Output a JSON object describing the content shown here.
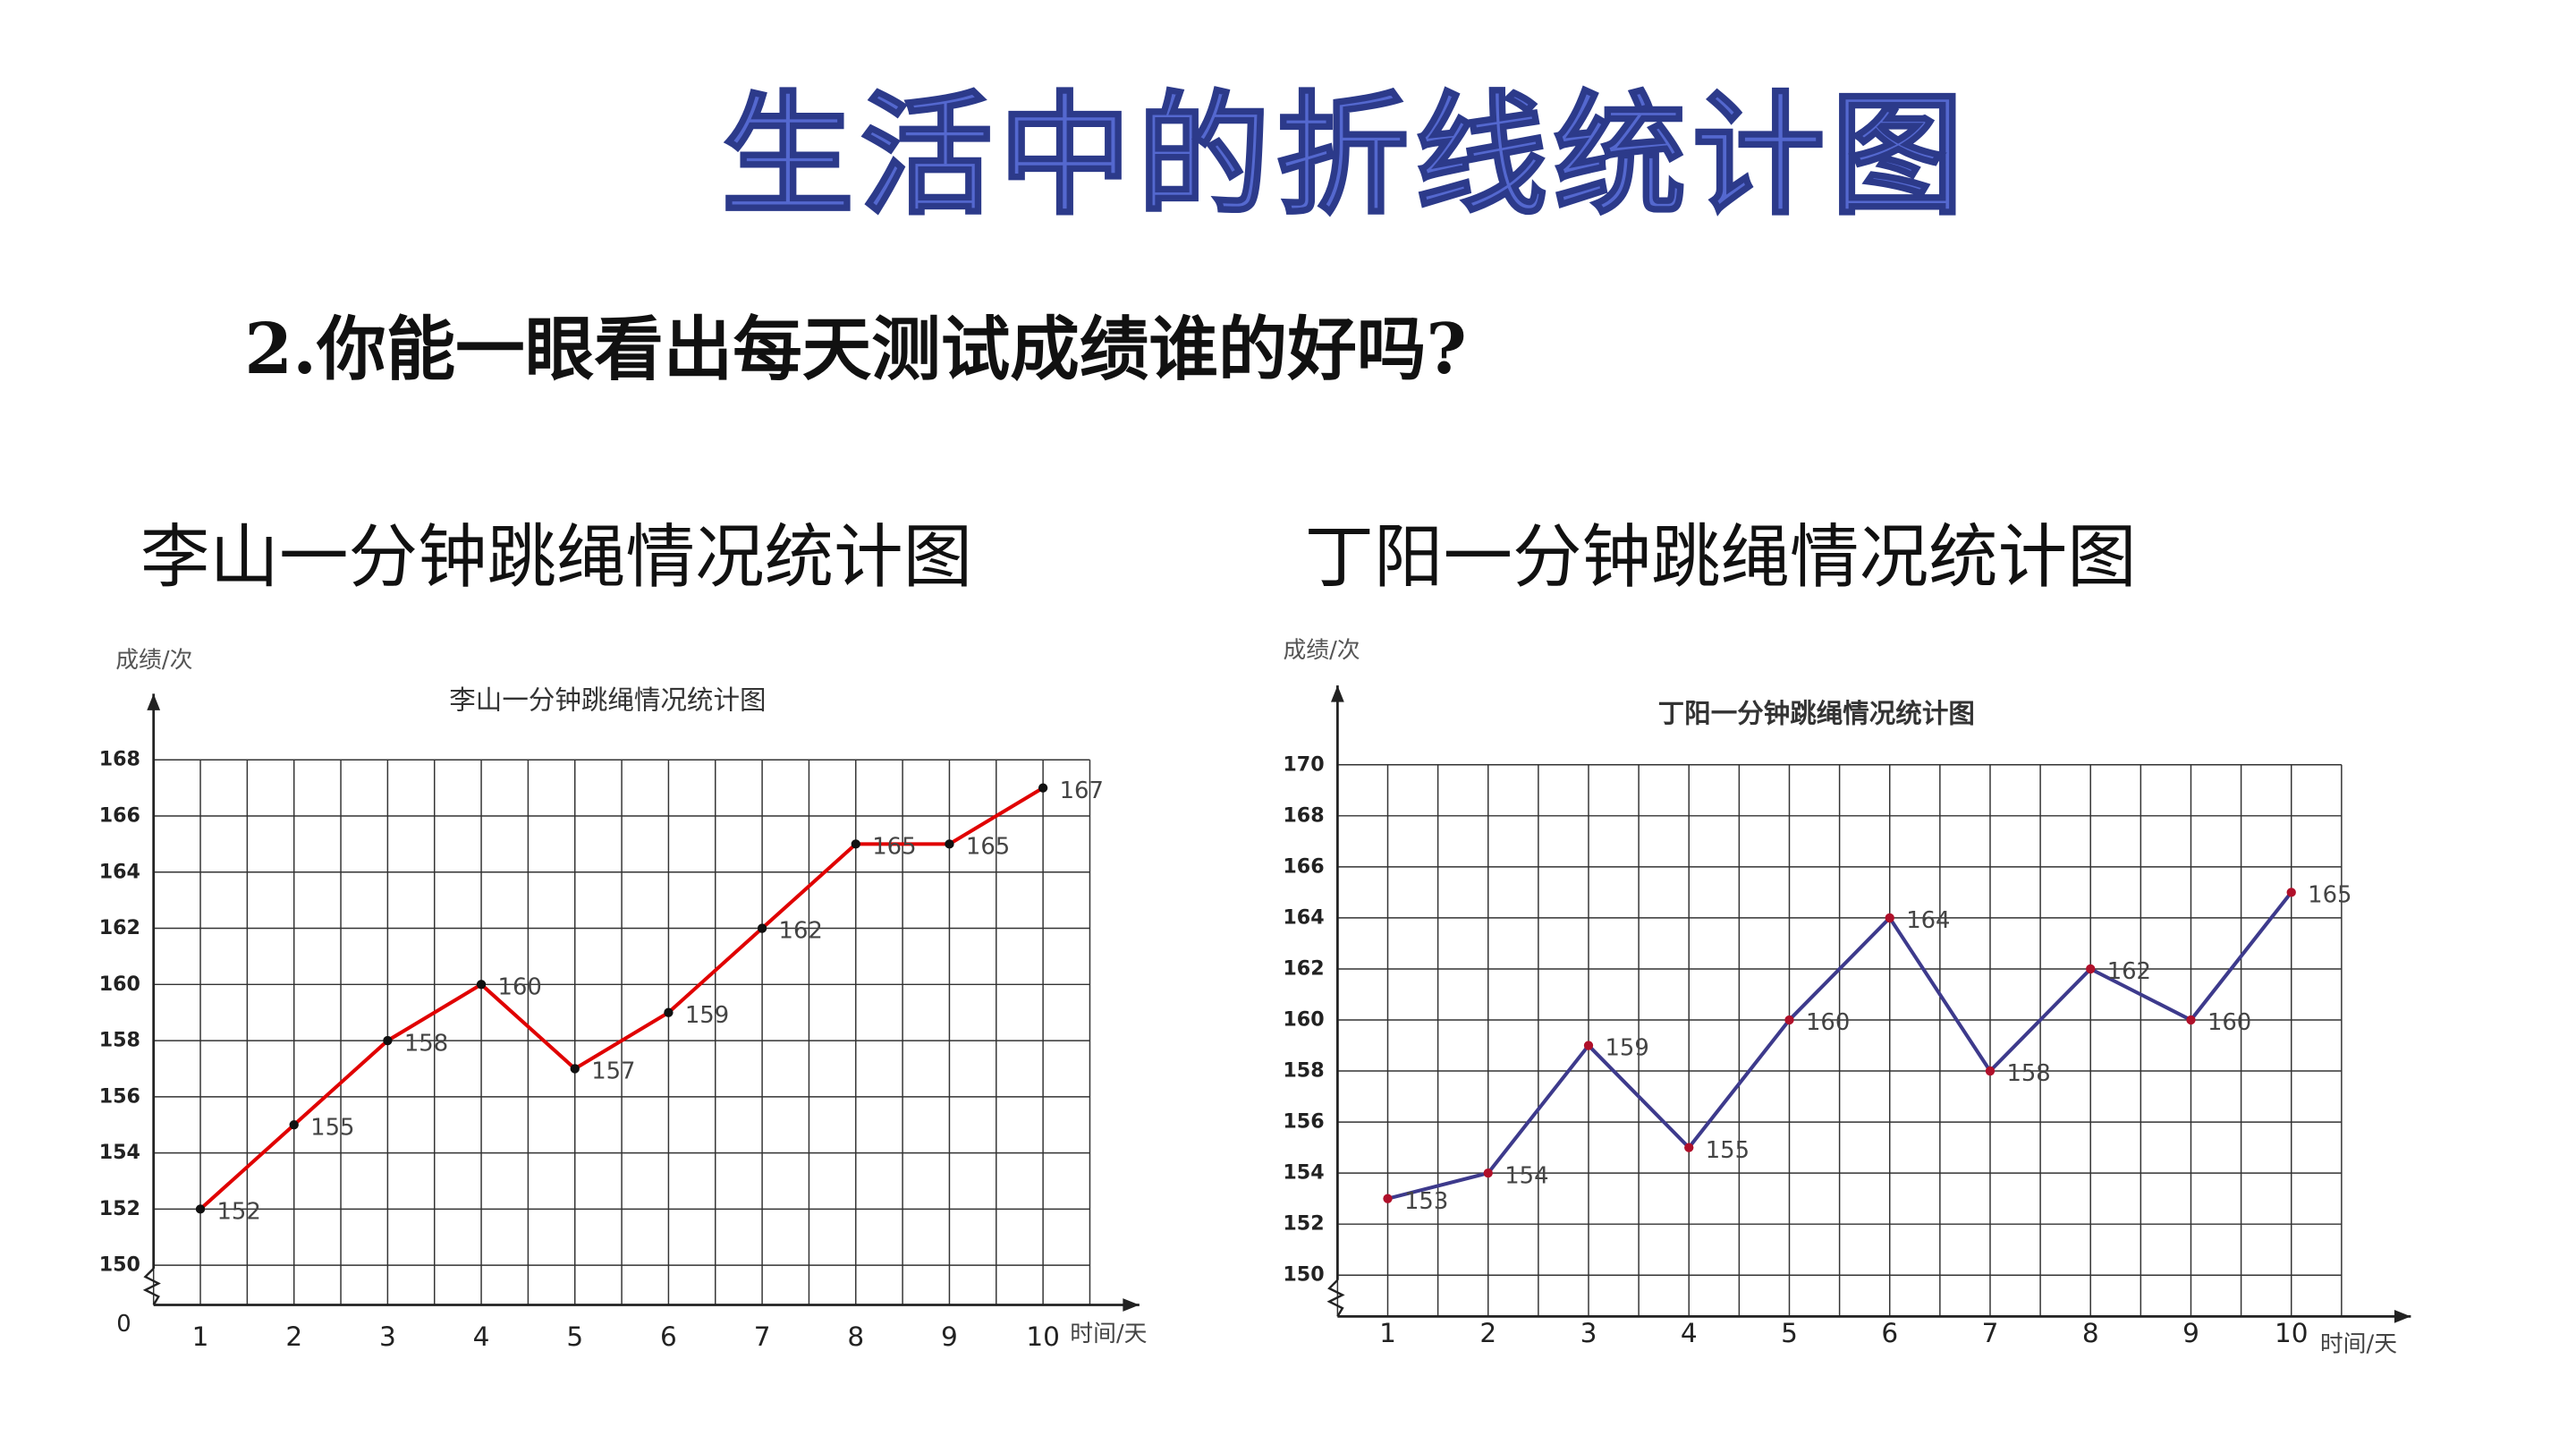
{
  "title": "生活中的折线统计图",
  "question": "2.你能一眼看出每天测试成绩谁的好吗?",
  "chart_data": [
    {
      "type": "line",
      "heading": "李山一分钟跳绳情况统计图",
      "title": "李山一分钟跳绳情况统计图",
      "y_label": "成绩/次",
      "x_label": "时间/天",
      "origin_label": "0",
      "categories": [
        "1",
        "2",
        "3",
        "4",
        "5",
        "6",
        "7",
        "8",
        "9",
        "10"
      ],
      "series": [
        {
          "color": "#e00000",
          "marker_color": "#111111",
          "values": [
            152,
            155,
            158,
            160,
            157,
            159,
            162,
            165,
            165,
            167
          ]
        }
      ],
      "ylim": [
        150,
        168
      ],
      "yticks": [
        150,
        152,
        154,
        156,
        158,
        160,
        162,
        164,
        166,
        168
      ],
      "grid": true
    },
    {
      "type": "line",
      "heading": "丁阳一分钟跳绳情况统计图",
      "title": "丁阳一分钟跳绳情况统计图",
      "y_label": "成绩/次",
      "x_label": "时间/天",
      "categories": [
        "1",
        "2",
        "3",
        "4",
        "5",
        "6",
        "7",
        "8",
        "9",
        "10"
      ],
      "series": [
        {
          "color": "#3d3a8c",
          "marker_color": "#b0102a",
          "values": [
            153,
            154,
            159,
            155,
            160,
            164,
            158,
            162,
            160,
            165
          ]
        }
      ],
      "ylim": [
        150,
        170
      ],
      "yticks": [
        150,
        152,
        154,
        156,
        158,
        160,
        162,
        164,
        166,
        168,
        170
      ],
      "grid": true
    }
  ]
}
